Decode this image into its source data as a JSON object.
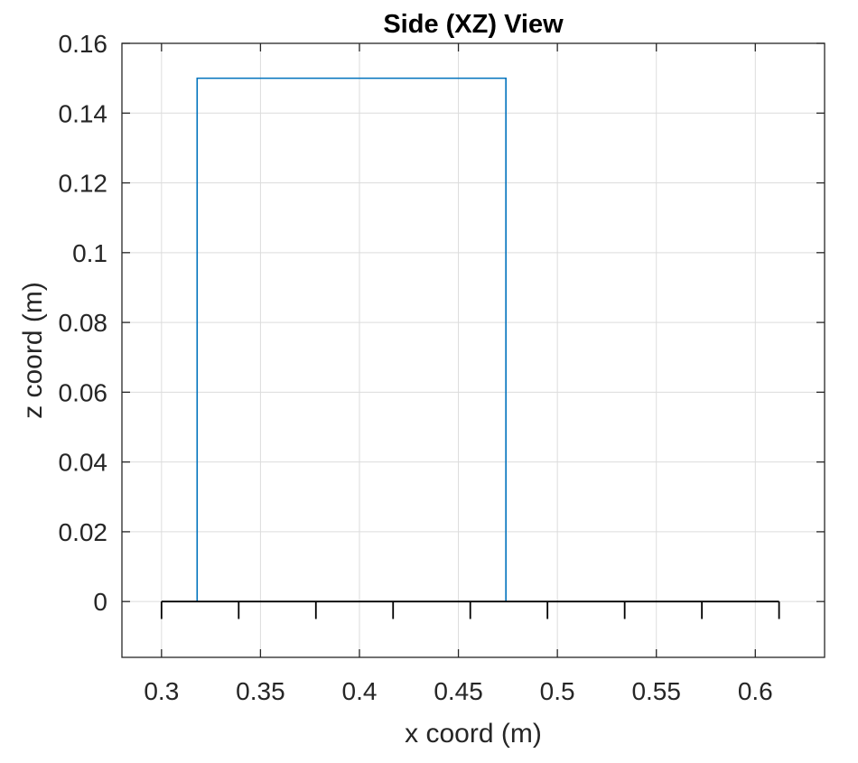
{
  "chart_data": {
    "type": "line",
    "title": "Side (XZ) View",
    "xlabel": "x coord (m)",
    "ylabel": "z coord (m)",
    "xlim": [
      0.28,
      0.635
    ],
    "ylim": [
      -0.016,
      0.16
    ],
    "xticks": [
      0.3,
      0.35,
      0.4,
      0.45,
      0.5,
      0.55,
      0.6
    ],
    "xtick_labels": [
      "0.3",
      "0.35",
      "0.4",
      "0.45",
      "0.5",
      "0.55",
      "0.6"
    ],
    "yticks": [
      0,
      0.02,
      0.04,
      0.06,
      0.08,
      0.1,
      0.12,
      0.14,
      0.16
    ],
    "ytick_labels": [
      "0",
      "0.02",
      "0.04",
      "0.06",
      "0.08",
      "0.1",
      "0.12",
      "0.14",
      "0.16"
    ],
    "grid": true,
    "series": [
      {
        "color": "#0072bd",
        "x": [
          0.318,
          0.318,
          0.474,
          0.474
        ],
        "y": [
          0,
          0.15,
          0.15,
          0
        ]
      },
      {
        "color": "#000000",
        "x": [
          0.3,
          0.612
        ],
        "y": [
          0,
          0
        ],
        "tick_x": [
          0.3,
          0.339,
          0.378,
          0.417,
          0.456,
          0.495,
          0.534,
          0.573,
          0.612
        ],
        "tick_depth": 0.005
      }
    ]
  }
}
